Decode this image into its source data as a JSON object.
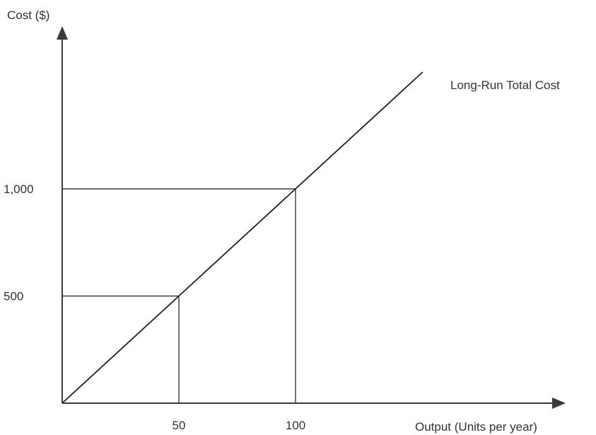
{
  "chart_data": {
    "type": "line",
    "xlabel": "Output (Units per year)",
    "ylabel": "Cost ($)",
    "x_ticks": [
      {
        "value": 50,
        "label": "50"
      },
      {
        "value": 100,
        "label": "100"
      }
    ],
    "y_ticks": [
      {
        "value": 500,
        "label": "500"
      },
      {
        "value": 1000,
        "label": "1,000"
      }
    ],
    "series": [
      {
        "name": "Long-Run Total Cost",
        "points": [
          [
            0,
            0
          ],
          [
            50,
            500
          ],
          [
            100,
            1000
          ],
          [
            154.5,
            1545
          ]
        ]
      }
    ],
    "reference_points": [
      [
        50,
        500
      ],
      [
        100,
        1000
      ]
    ],
    "xlim": [
      0,
      210
    ],
    "ylim": [
      0,
      1800
    ],
    "grid": false,
    "legend": "none"
  }
}
